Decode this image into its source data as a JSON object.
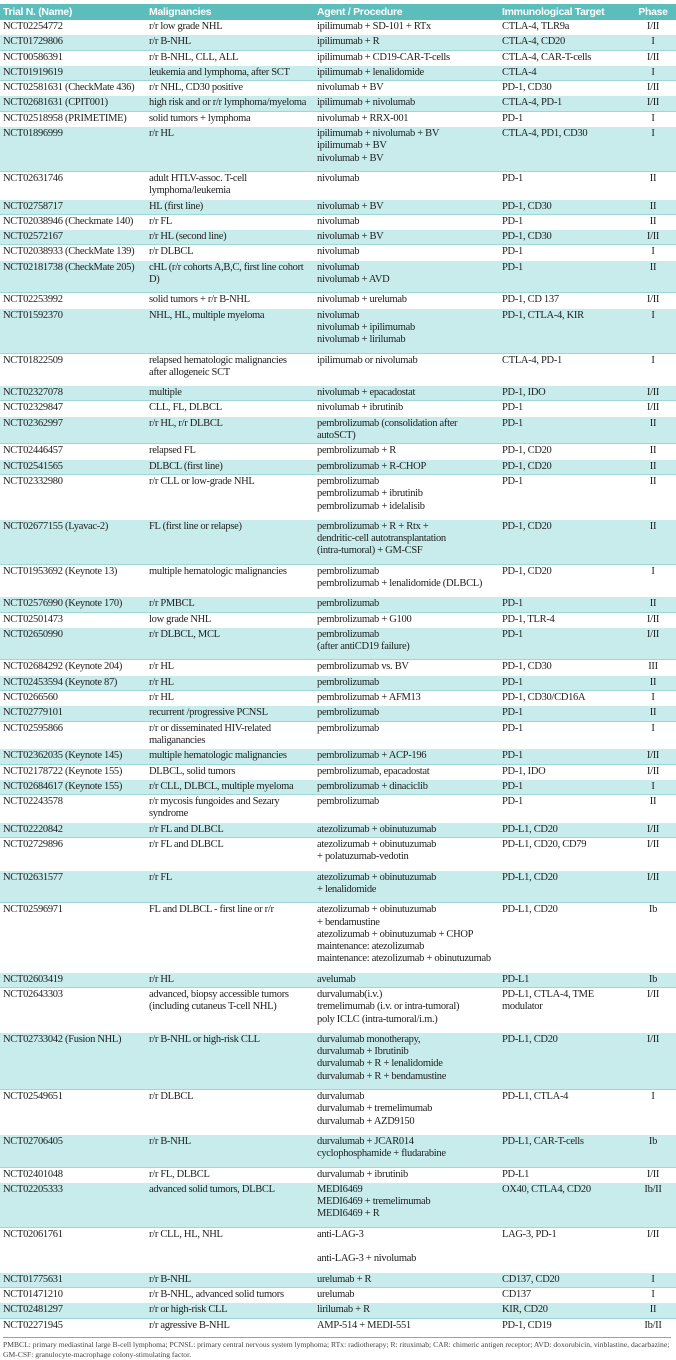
{
  "header": {
    "trial": "Trial N. (Name)",
    "malignancies": "Malignancies",
    "agent": "Agent / Procedure",
    "target": "Immunological Target",
    "phase": "Phase"
  },
  "colors": {
    "header_bg": "#5cbdbd",
    "alt_row_bg": "#c8ebeb"
  },
  "rows": [
    {
      "trial": "NCT02254772",
      "mal": [
        "r/r low grade NHL"
      ],
      "agent": [
        "ipilimumab + SD-101 + RTx"
      ],
      "target": "CTLA-4, TLR9a",
      "phase": "I/II"
    },
    {
      "trial": "NCT01729806",
      "mal": [
        "r/r B-NHL"
      ],
      "agent": [
        "ipilimumab + R"
      ],
      "target": "CTLA-4, CD20",
      "phase": "I"
    },
    {
      "trial": "NCT00586391",
      "mal": [
        "r/r B-NHL, CLL, ALL"
      ],
      "agent": [
        "ipilimumab + CD19-CAR-T-cells"
      ],
      "target": "CTLA-4, CAR-T-cells",
      "phase": "I/II"
    },
    {
      "trial": "NCT01919619",
      "mal": [
        "leukemia and lymphoma, after SCT"
      ],
      "agent": [
        "ipilimumab + lenalidomide"
      ],
      "target": "CTLA-4",
      "phase": "I"
    },
    {
      "trial": "NCT02581631 (CheckMate 436)",
      "mal": [
        "r/r NHL, CD30 positive"
      ],
      "agent": [
        "nivolumab + BV"
      ],
      "target": "PD-1, CD30",
      "phase": "I/II"
    },
    {
      "trial": "NCT02681631 (CPIT001)",
      "mal": [
        "high risk and or r/r lymphoma/myeloma"
      ],
      "agent": [
        "ipilimumab + nivolumab"
      ],
      "target": "CTLA-4, PD-1",
      "phase": "I/II"
    },
    {
      "trial": "NCT02518958 (PRIMETIME)",
      "mal": [
        "solid tumors + lymphoma"
      ],
      "agent": [
        "nivolumab + RRX-001"
      ],
      "target": "PD-1",
      "phase": "I"
    },
    {
      "trial": "NCT01896999",
      "mal": [
        "r/r HL"
      ],
      "agent": [
        "ipilimumab + nivolumab + BV",
        "ipilimumab + BV",
        "nivolumab + BV"
      ],
      "target": "CTLA-4, PD1, CD30",
      "phase": "I"
    },
    {
      "trial": "NCT02631746",
      "mal": [
        "adult HTLV-assoc. T-cell lymphoma/leukemia"
      ],
      "agent": [
        "nivolumab"
      ],
      "target": "PD-1",
      "phase": "II"
    },
    {
      "trial": "NCT02758717",
      "mal": [
        "HL (first line)"
      ],
      "agent": [
        "nivolumab + BV"
      ],
      "target": "PD-1, CD30",
      "phase": "II"
    },
    {
      "trial": "NCT02038946 (Checkmate 140)",
      "mal": [
        "r/r FL"
      ],
      "agent": [
        "nivolumab"
      ],
      "target": "PD-1",
      "phase": "II"
    },
    {
      "trial": "NCT02572167",
      "mal": [
        "r/r HL (second line)"
      ],
      "agent": [
        "nivolumab + BV"
      ],
      "target": "PD-1, CD30",
      "phase": "I/II"
    },
    {
      "trial": "NCT02038933 (CheckMate 139)",
      "mal": [
        "r/r DLBCL"
      ],
      "agent": [
        "nivolumab"
      ],
      "target": "PD-1",
      "phase": "I"
    },
    {
      "trial": "NCT02181738 (CheckMate 205)",
      "mal": [
        "cHL (r/r cohorts A,B,C, first line cohort D)"
      ],
      "agent": [
        "nivolumab",
        "nivolumab + AVD"
      ],
      "target": "PD-1",
      "phase": "II"
    },
    {
      "trial": "NCT02253992",
      "mal": [
        "solid tumors + r/r B-NHL"
      ],
      "agent": [
        "nivolumab + urelumab"
      ],
      "target": "PD-1, CD 137",
      "phase": "I/II"
    },
    {
      "trial": "NCT01592370",
      "mal": [
        "NHL, HL, multiple myeloma"
      ],
      "agent": [
        "nivolumab",
        "nivolumab + ipilimumab",
        "nivolumab + lirilumab"
      ],
      "target": "PD-1, CTLA-4, KIR",
      "phase": "I"
    },
    {
      "trial": "NCT01822509",
      "mal": [
        "relapsed hematologic malignancies",
        "after allogeneic SCT"
      ],
      "agent": [
        "ipilimumab or nivolumab"
      ],
      "target": "CTLA-4, PD-1",
      "phase": "I"
    },
    {
      "trial": "NCT02327078",
      "mal": [
        "multiple"
      ],
      "agent": [
        "nivolumab + epacadostat"
      ],
      "target": "PD-1, IDO",
      "phase": "I/II"
    },
    {
      "trial": "NCT02329847",
      "mal": [
        "CLL, FL, DLBCL"
      ],
      "agent": [
        "nivolumab + ibrutinib"
      ],
      "target": "PD-1",
      "phase": "I/II"
    },
    {
      "trial": "NCT02362997",
      "mal": [
        "r/r HL, r/r DLBCL"
      ],
      "agent": [
        "pembrolizumab (consolidation after autoSCT)"
      ],
      "target": "PD-1",
      "phase": "II"
    },
    {
      "trial": "NCT02446457",
      "mal": [
        "relapsed FL"
      ],
      "agent": [
        "pembrolizumab + R"
      ],
      "target": "PD-1, CD20",
      "phase": "II"
    },
    {
      "trial": "NCT02541565",
      "mal": [
        "DLBCL (first line)"
      ],
      "agent": [
        "pembrolizumab + R-CHOP"
      ],
      "target": "PD-1, CD20",
      "phase": "II"
    },
    {
      "trial": "NCT02332980",
      "mal": [
        "r/r CLL or low-grade NHL"
      ],
      "agent": [
        "pembrolizumab",
        "pembrolizumab + ibrutinib",
        "pembrolizumab + idelalisib"
      ],
      "target": "PD-1",
      "phase": "II"
    },
    {
      "trial": "NCT02677155 (Lyavac-2)",
      "mal": [
        "FL (first line or relapse)"
      ],
      "agent": [
        "pembrolizumab + R + Rtx +",
        "dendritic-cell autotransplantation",
        "(intra-tumoral) + GM-CSF"
      ],
      "target": "PD-1, CD20",
      "phase": "II"
    },
    {
      "trial": "NCT01953692 (Keynote 13)",
      "mal": [
        "multiple hematologic malignancies"
      ],
      "agent": [
        "pembrolizumab",
        "pembrolizumab + lenalidomide (DLBCL)"
      ],
      "target": "PD-1, CD20",
      "phase": "I"
    },
    {
      "trial": "NCT02576990 (Keynote 170)",
      "mal": [
        "r/r PMBCL"
      ],
      "agent": [
        "pembrolizumab"
      ],
      "target": "PD-1",
      "phase": "II"
    },
    {
      "trial": "NCT02501473",
      "mal": [
        "low grade NHL"
      ],
      "agent": [
        "pembrolizumab + G100"
      ],
      "target": "PD-1, TLR-4",
      "phase": "I/II"
    },
    {
      "trial": "NCT02650990",
      "mal": [
        "r/r DLBCL, MCL"
      ],
      "agent": [
        "pembrolizumab",
        "(after antiCD19 failure)"
      ],
      "target": "PD-1",
      "phase": "I/II"
    },
    {
      "trial": "NCT02684292 (Keynote 204)",
      "mal": [
        "r/r HL"
      ],
      "agent": [
        "pembrolizumab vs. BV"
      ],
      "target": "PD-1, CD30",
      "phase": "III"
    },
    {
      "trial": "NCT02453594 (Keynote 87)",
      "mal": [
        "r/r HL"
      ],
      "agent": [
        "pembrolizumab"
      ],
      "target": "PD-1",
      "phase": "II"
    },
    {
      "trial": "NCT0266560",
      "mal": [
        "r/r HL"
      ],
      "agent": [
        "pembrolizumab + AFM13"
      ],
      "target": "PD-1, CD30/CD16A",
      "phase": "I"
    },
    {
      "trial": "NCT02779101",
      "mal": [
        "recurrent /progressive PCNSL"
      ],
      "agent": [
        "pembrolizumab"
      ],
      "target": "PD-1",
      "phase": "II"
    },
    {
      "trial": "NCT02595866",
      "mal": [
        "r/r or disseminated HIV-related maliganancies"
      ],
      "agent": [
        "pembrolizumab"
      ],
      "target": "PD-1",
      "phase": "I"
    },
    {
      "trial": "NCT02362035 (Keynote 145)",
      "mal": [
        "multiple hematologic malignancies"
      ],
      "agent": [
        "pembrolizumab + ACP-196"
      ],
      "target": "PD-1",
      "phase": "I/II"
    },
    {
      "trial": "NCT02178722 (Keynote 155)",
      "mal": [
        "DLBCL, solid tumors"
      ],
      "agent": [
        "pembrolizumab, epacadostat"
      ],
      "target": "PD-1, IDO",
      "phase": "I/II"
    },
    {
      "trial": "NCT02684617 (Keynote 155)",
      "mal": [
        "r/r CLL, DLBCL, multiple myeloma"
      ],
      "agent": [
        "pembrolizumab + dinaciclib"
      ],
      "target": "PD-1",
      "phase": "I"
    },
    {
      "trial": "NCT02243578",
      "mal": [
        "r/r mycosis fungoides and Sezary syndrome"
      ],
      "agent": [
        "pembrolizumab"
      ],
      "target": "PD-1",
      "phase": "II"
    },
    {
      "trial": "NCT02220842",
      "mal": [
        "r/r FL and DLBCL"
      ],
      "agent": [
        "atezolizumab + obinutuzumab"
      ],
      "target": "PD-L1, CD20",
      "phase": "I/II"
    },
    {
      "trial": "NCT02729896",
      "mal": [
        "r/r FL and DLBCL"
      ],
      "agent": [
        "atezolizumab + obinutuzumab",
        "+ polatuzumab-vedotin"
      ],
      "target": "PD-L1, CD20, CD79",
      "phase": "I/II"
    },
    {
      "trial": "NCT02631577",
      "mal": [
        "r/r FL"
      ],
      "agent": [
        "atezolizumab + obinutuzumab",
        "+ lenalidomide"
      ],
      "target": "PD-L1, CD20",
      "phase": "I/II"
    },
    {
      "trial": "NCT02596971",
      "mal": [
        "FL and DLBCL - first line or r/r"
      ],
      "agent": [
        "atezolizumab + obinutuzumab",
        "+ bendamustine",
        "atezolizumab + obinutuzumab + CHOP",
        "maintenance: atezolizumab",
        "maintenance: atezolizumab + obinutuzumab"
      ],
      "target": "PD-L1, CD20",
      "phase": "Ib"
    },
    {
      "trial": "NCT02603419",
      "mal": [
        "r/r HL"
      ],
      "agent": [
        "avelumab"
      ],
      "target": "PD-L1",
      "phase": "Ib"
    },
    {
      "trial": "NCT02643303",
      "mal": [
        "advanced, biopsy accessible tumors",
        "(including cutaneus T-cell NHL)"
      ],
      "agent": [
        "durvalumab(i.v.)",
        "tremelimumab (i.v. or intra-tumoral)",
        "poly ICLC (intra-tumoral/i.m.)"
      ],
      "target": "PD-L1, CTLA-4, TME modulator",
      "phase": "I/II"
    },
    {
      "trial": "NCT02733042 (Fusion NHL)",
      "mal": [
        "r/r B-NHL or high-risk CLL"
      ],
      "agent": [
        "durvalumab monotherapy,",
        "durvalumab + Ibrutinib",
        "durvalumab + R + lenalidomide",
        "durvalumab + R + bendamustine"
      ],
      "target": "PD-L1, CD20",
      "phase": "I/II"
    },
    {
      "trial": "NCT02549651",
      "mal": [
        "r/r DLBCL"
      ],
      "agent": [
        "durvalumab",
        "durvalumab + tremelimumab",
        "durvalumab + AZD9150"
      ],
      "target": "PD-L1, CTLA-4",
      "phase": "I"
    },
    {
      "trial": "NCT02706405",
      "mal": [
        "r/r B-NHL"
      ],
      "agent": [
        "durvalumab + JCAR014",
        "cyclophosphamide + fludarabine"
      ],
      "target": "PD-L1, CAR-T-cells",
      "phase": "Ib"
    },
    {
      "trial": "NCT02401048",
      "mal": [
        "r/r FL, DLBCL"
      ],
      "agent": [
        "durvalumab + ibrutinib"
      ],
      "target": "PD-L1",
      "phase": "I/II"
    },
    {
      "trial": "NCT02205333",
      "mal": [
        "advanced solid tumors, DLBCL"
      ],
      "agent": [
        "MEDI6469",
        "MEDI6469 + tremelimumab",
        "MEDI6469 + R"
      ],
      "target": "OX40, CTLA4, CD20",
      "phase": "Ib/II"
    },
    {
      "trial": "NCT02061761",
      "mal": [
        "r/r CLL, HL, NHL"
      ],
      "agent": [
        "anti-LAG-3",
        "",
        "anti-LAG-3 + nivolumab"
      ],
      "target": "LAG-3, PD-1",
      "phase": "I/II"
    },
    {
      "trial": "NCT01775631",
      "mal": [
        "r/r B-NHL"
      ],
      "agent": [
        "urelumab + R"
      ],
      "target": "CD137, CD20",
      "phase": "I"
    },
    {
      "trial": "NCT01471210",
      "mal": [
        "r/r B-NHL, advanced solid tumors"
      ],
      "agent": [
        "urelumab"
      ],
      "target": "CD137",
      "phase": "I"
    },
    {
      "trial": "NCT02481297",
      "mal": [
        "r/r or high-risk CLL"
      ],
      "agent": [
        "lirilumab + R"
      ],
      "target": "KIR, CD20",
      "phase": "II"
    },
    {
      "trial": "NCT02271945",
      "mal": [
        "r/r agressive B-NHL"
      ],
      "agent": [
        "AMP-514 + MEDI-551"
      ],
      "target": "PD-1, CD19",
      "phase": "Ib/II"
    }
  ],
  "footnote": "PMBCL: primary mediastinal large B-cell lymphoma; PCNSL: primary central nervous system lymphoma; RTx: radiotherapy; R: rituximab; CAR: chimeric antigen receptor; AVD: doxorubicin, vinblastine, dacarbazine; GM-CSF: granulocyte-macrophage colony-stimulating factor."
}
